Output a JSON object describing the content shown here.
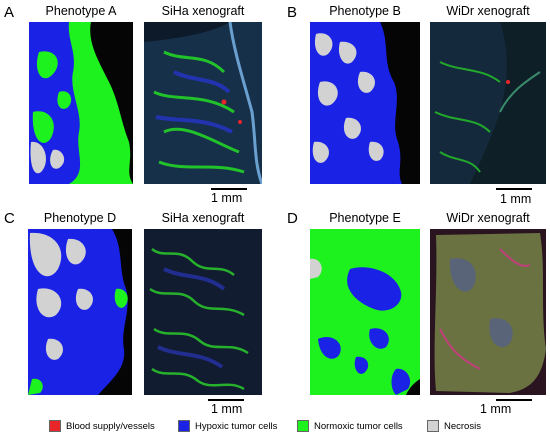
{
  "panels": [
    {
      "letter": "A",
      "left_title": "Phenotype A",
      "right_title": "SiHa xenograft",
      "scale_label": "1 mm"
    },
    {
      "letter": "B",
      "left_title": "Phenotype B",
      "right_title": "WiDr xenograft",
      "scale_label": "1 mm"
    },
    {
      "letter": "C",
      "left_title": "Phenotype D",
      "right_title": "SiHa xenograft",
      "scale_label": "1 mm"
    },
    {
      "letter": "D",
      "left_title": "Phenotype E",
      "right_title": "WiDr xenograft",
      "scale_label": "1 mm"
    }
  ],
  "legend": [
    {
      "label": "Blood supply/vessels",
      "color": "#e8262a"
    },
    {
      "label": "Hypoxic tumor cells",
      "color": "#1a22e6"
    },
    {
      "label": "Normoxic tumor cells",
      "color": "#1ef21e"
    },
    {
      "label": "Necrosis",
      "color": "#d2d2d2"
    }
  ],
  "colors": {
    "phenotype_bg": "#050505",
    "xenograft_siha": "#0d1a2a",
    "xenograft_widr": "#0e1f28"
  }
}
